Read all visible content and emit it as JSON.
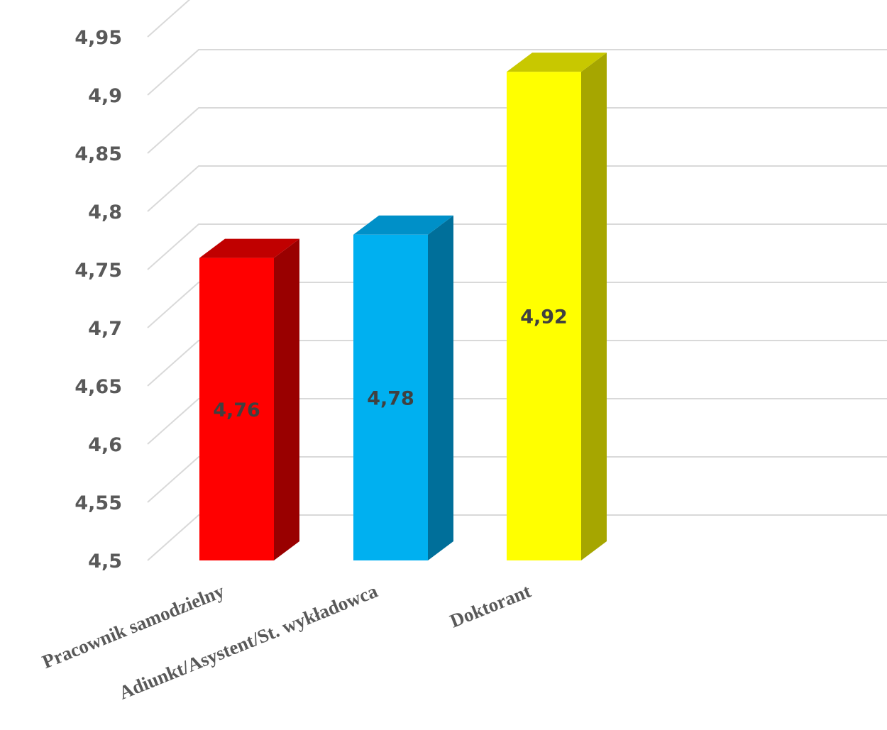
{
  "chart_data": {
    "type": "bar",
    "categories": [
      "Pracownik samodzielny",
      "Adiunkt/Asystent/St. wykładowca",
      "Doktorant"
    ],
    "values": [
      4.76,
      4.78,
      4.92
    ],
    "value_labels": [
      "4,76",
      "4,78",
      "4,92"
    ],
    "y_tick_labels": [
      "4,5",
      "4,55",
      "4,6",
      "4,65",
      "4,7",
      "4,75",
      "4,8",
      "4,85",
      "4,9",
      "4,95"
    ],
    "ylim": [
      4.5,
      4.95
    ],
    "ytick_step": 0.05,
    "grid": true,
    "legend": "none",
    "style": "3d-column",
    "bar_colors": [
      {
        "front": "#ff0000",
        "side": "#990000",
        "top": "#c00000"
      },
      {
        "front": "#00b0f0",
        "side": "#006f9a",
        "top": "#0090c8"
      },
      {
        "front": "#ffff00",
        "side": "#a6a600",
        "top": "#c8c800"
      }
    ],
    "title": "",
    "xlabel": "",
    "ylabel": ""
  }
}
